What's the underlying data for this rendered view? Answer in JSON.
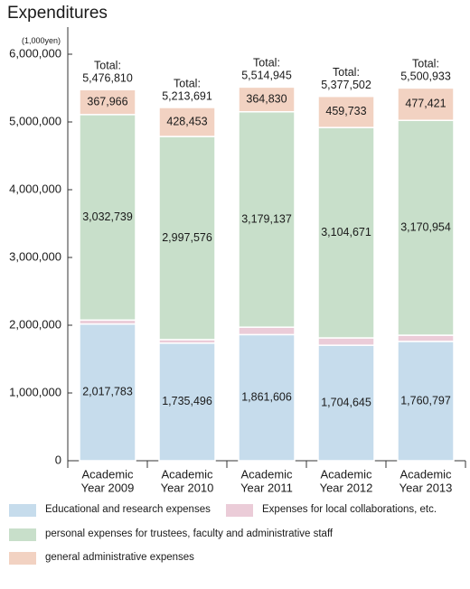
{
  "title": "Expenditures",
  "unit_label": "(1,000yen)",
  "colors": {
    "educational": "#c6dcec",
    "local": "#ebccd8",
    "personal": "#c8dfca",
    "general": "#f2d2c2"
  },
  "legend": [
    {
      "key": "educational",
      "label": "Educational and research expenses"
    },
    {
      "key": "local",
      "label": "Expenses for local collaborations, etc."
    },
    {
      "key": "personal",
      "label": "personal expenses for trustees, faculty and administrative staff"
    },
    {
      "key": "general",
      "label": "general administrative expenses"
    }
  ],
  "chart_data": {
    "type": "bar",
    "stacked": true,
    "title": "Expenditures",
    "ylabel": "(1,000yen)",
    "ylim": [
      0,
      6000000
    ],
    "yticks": [
      0,
      1000000,
      2000000,
      3000000,
      4000000,
      5000000,
      6000000
    ],
    "ytick_labels": [
      "0",
      "1,000,000",
      "2,000,000",
      "3,000,000",
      "4,000,000",
      "5,000,000",
      "6,000,000"
    ],
    "categories": [
      [
        "Academic",
        "Year 2009"
      ],
      [
        "Academic",
        "Year 2010"
      ],
      [
        "Academic",
        "Year 2011"
      ],
      [
        "Academic",
        "Year 2012"
      ],
      [
        "Academic",
        "Year 2013"
      ]
    ],
    "series": [
      {
        "key": "educational",
        "name": "Educational and research expenses",
        "values": [
          2017783,
          1735496,
          1861606,
          1704645,
          1760797
        ],
        "labels": [
          "2,017,783",
          "1,735,496",
          "1,861,606",
          "1,704,645",
          "1,760,797"
        ]
      },
      {
        "key": "local",
        "name": "Expenses for local collaborations, etc.",
        "values": [
          58322,
          52167,
          109371,
          108453,
          91761
        ],
        "labels": [
          "58,322",
          "52,167",
          "109,371",
          "108,453",
          "91,761"
        ]
      },
      {
        "key": "personal",
        "name": "personal expenses for trustees, faculty and administrative staff",
        "values": [
          3032739,
          2997576,
          3179137,
          3104671,
          3170954
        ],
        "labels": [
          "3,032,739",
          "2,997,576",
          "3,179,137",
          "3,104,671",
          "3,170,954"
        ]
      },
      {
        "key": "general",
        "name": "general administrative expenses",
        "values": [
          367966,
          428453,
          364830,
          459733,
          477421
        ],
        "labels": [
          "367,966",
          "428,453",
          "364,830",
          "459,733",
          "477,421"
        ]
      }
    ],
    "total_label": "Total:",
    "totals": [
      5476810,
      5213691,
      5514945,
      5377502,
      5500933
    ],
    "total_labels": [
      "5,476,810",
      "5,213,691",
      "5,514,945",
      "5,377,502",
      "5,500,933"
    ]
  }
}
